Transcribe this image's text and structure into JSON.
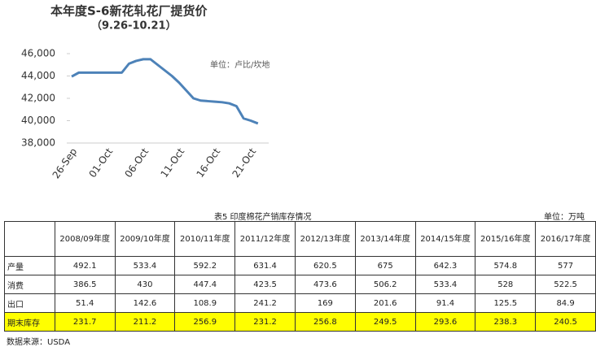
{
  "chart_data": {
    "type": "line",
    "title": "本年度S-6新花轧花厂提货价",
    "subtitle": "（9.26-10.21）",
    "annotation": "单位：卢比/坎地",
    "categories": [
      "26-Sep",
      null,
      null,
      null,
      null,
      "01-Oct",
      null,
      null,
      null,
      null,
      "06-Oct",
      null,
      null,
      null,
      null,
      "11-Oct",
      null,
      null,
      null,
      null,
      "16-Oct",
      null,
      null,
      null,
      null,
      "21-Oct",
      null
    ],
    "values": [
      43950,
      44300,
      44300,
      44300,
      44300,
      44300,
      44300,
      44300,
      45100,
      45350,
      45500,
      45500,
      45000,
      44500,
      44000,
      43400,
      42700,
      42000,
      41800,
      41750,
      41700,
      41650,
      41550,
      41300,
      40200,
      40000,
      39750
    ],
    "color": "#4d82b8",
    "ylim": [
      38000,
      46000
    ],
    "yticks": [
      {
        "value": 38000,
        "label": "38,000"
      },
      {
        "value": 40000,
        "label": "40,000"
      },
      {
        "value": 42000,
        "label": "42,000"
      },
      {
        "value": 44000,
        "label": "44,000"
      },
      {
        "value": 46000,
        "label": "46,000"
      }
    ],
    "grid": false
  },
  "table": {
    "caption": "表5 印度棉花产销库存情况",
    "unit": "单位：万吨",
    "header": [
      "2008/09年度",
      "2009/10年度",
      "2010/11年度",
      "2011/12年度",
      "2012/13年度",
      "2013/14年度",
      "2014/15年度",
      "2015/16年度",
      "2016/17年度"
    ],
    "rows": [
      [
        "产量",
        "492.1",
        "533.4",
        "592.2",
        "631.4",
        "620.5",
        "675",
        "642.3",
        "574.8",
        "577"
      ],
      [
        "消费",
        "386.5",
        "430",
        "447.4",
        "423.5",
        "473.6",
        "506.2",
        "533.4",
        "528",
        "522.5"
      ],
      [
        "出口",
        "51.4",
        "142.6",
        "108.9",
        "241.2",
        "169",
        "201.6",
        "91.4",
        "125.5",
        "84.9"
      ],
      [
        "期末库存",
        "231.7",
        "211.2",
        "256.9",
        "231.2",
        "256.8",
        "249.5",
        "293.6",
        "238.3",
        "240.5"
      ]
    ],
    "source": "数据来源：USDA"
  }
}
